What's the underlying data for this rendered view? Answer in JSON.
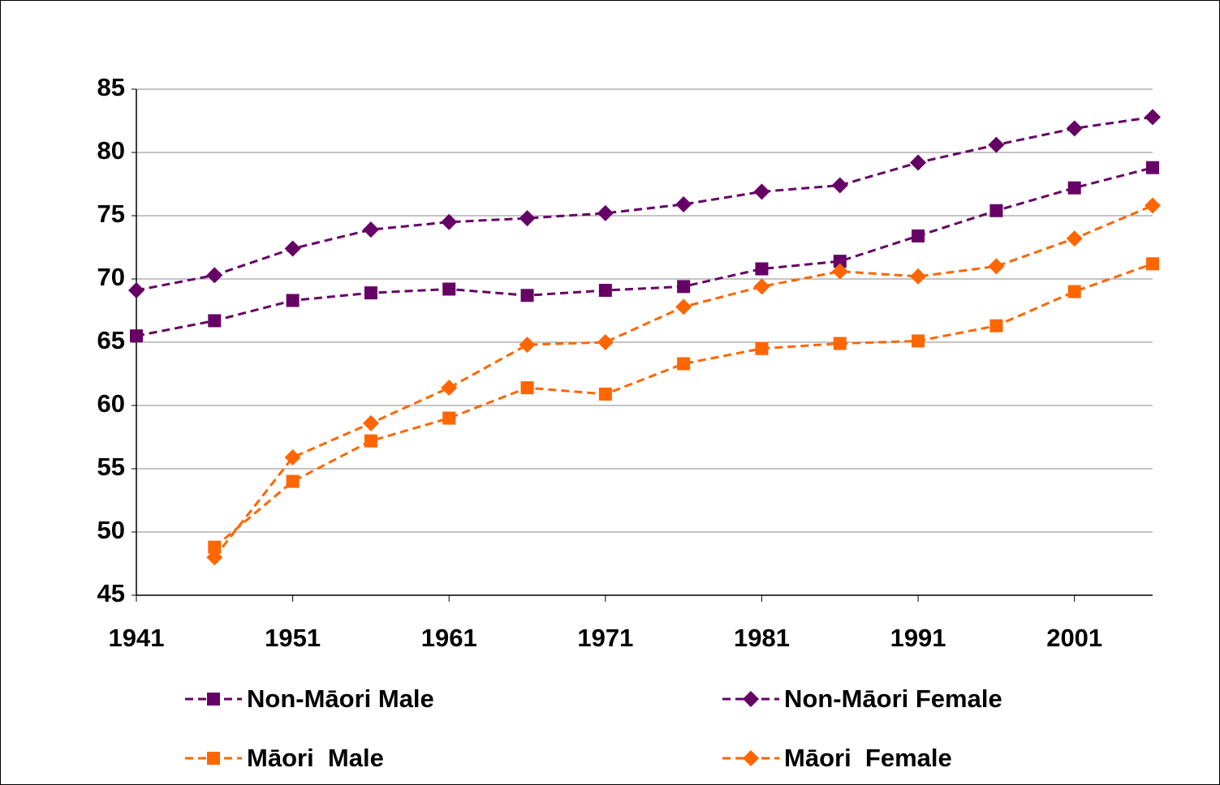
{
  "chart_data": {
    "type": "line",
    "x": [
      1941,
      1946,
      1951,
      1956,
      1961,
      1966,
      1971,
      1976,
      1981,
      1986,
      1991,
      1996,
      2001,
      2006
    ],
    "xlim": [
      1941,
      2006
    ],
    "xticks": [
      1941,
      1951,
      1961,
      1971,
      1981,
      1991,
      2001
    ],
    "ylim": [
      45,
      85
    ],
    "yticks": [
      45,
      50,
      55,
      60,
      65,
      70,
      75,
      80,
      85
    ],
    "grid": true,
    "series": [
      {
        "name": "Non-Māori Male",
        "color": "#660066",
        "marker": "square",
        "values": [
          65.5,
          66.7,
          68.3,
          68.9,
          69.2,
          68.7,
          69.1,
          69.4,
          70.8,
          71.4,
          73.4,
          75.4,
          77.2,
          78.8
        ]
      },
      {
        "name": "Non-Māori Female",
        "color": "#660066",
        "marker": "diamond",
        "values": [
          69.1,
          70.3,
          72.4,
          73.9,
          74.5,
          74.8,
          75.2,
          75.9,
          76.9,
          77.4,
          79.2,
          80.6,
          81.9,
          82.8
        ]
      },
      {
        "name": "Māori  Male",
        "color": "#ff6600",
        "marker": "square",
        "values": [
          null,
          48.8,
          54.0,
          57.2,
          59.0,
          61.4,
          60.9,
          63.3,
          64.5,
          64.9,
          65.1,
          66.3,
          69.0,
          71.2
        ]
      },
      {
        "name": "Māori  Female",
        "color": "#ff6600",
        "marker": "diamond",
        "values": [
          null,
          48.0,
          55.9,
          58.6,
          61.4,
          64.8,
          65.0,
          67.8,
          69.4,
          70.6,
          70.2,
          71.0,
          73.2,
          75.8
        ]
      }
    ]
  }
}
